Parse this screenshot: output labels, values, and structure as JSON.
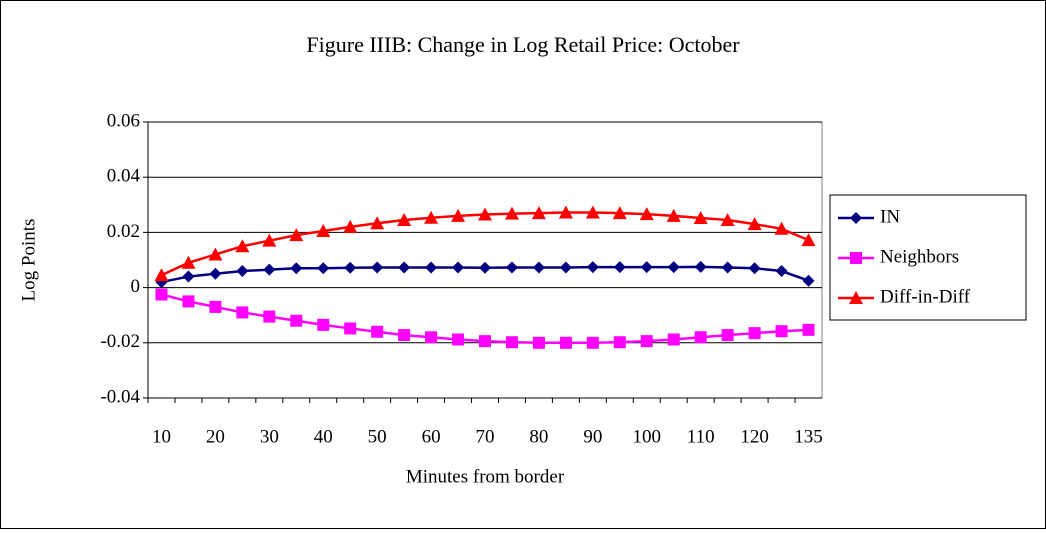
{
  "chart_data": {
    "type": "line",
    "title": "Figure IIIB:  Change in Log Retail Price:  October",
    "y_label": "Log Points",
    "x_label": "Minutes from border",
    "categories": [
      "10",
      null,
      "20",
      null,
      "30",
      null,
      "40",
      null,
      "50",
      null,
      "60",
      null,
      "70",
      null,
      "80",
      null,
      "90",
      null,
      "100",
      null,
      "110",
      null,
      "120",
      null,
      "135"
    ],
    "series": [
      {
        "name": "IN",
        "color": "#000080",
        "marker": "diamond",
        "values": [
          0.002,
          0.004,
          0.005,
          0.006,
          0.0065,
          0.007,
          0.007,
          0.0072,
          0.0073,
          0.0073,
          0.0073,
          0.0073,
          0.0072,
          0.0073,
          0.0073,
          0.0073,
          0.0074,
          0.0074,
          0.0074,
          0.0074,
          0.0075,
          0.0073,
          0.007,
          0.006,
          0.0025
        ]
      },
      {
        "name": "Neighbors",
        "color": "#ff00ff",
        "marker": "square",
        "values": [
          -0.0025,
          -0.005,
          -0.007,
          -0.009,
          -0.0105,
          -0.012,
          -0.0135,
          -0.0148,
          -0.016,
          -0.0172,
          -0.018,
          -0.0188,
          -0.0194,
          -0.0198,
          -0.02,
          -0.02,
          -0.02,
          -0.0198,
          -0.0194,
          -0.0188,
          -0.018,
          -0.0172,
          -0.0165,
          -0.0158,
          -0.0153
        ]
      },
      {
        "name": "Diff-in-Diff",
        "color": "#ff0000",
        "marker": "triangle",
        "values": [
          0.0045,
          0.009,
          0.012,
          0.015,
          0.017,
          0.019,
          0.0205,
          0.022,
          0.0233,
          0.0245,
          0.0253,
          0.026,
          0.0265,
          0.0268,
          0.027,
          0.0272,
          0.0272,
          0.027,
          0.0266,
          0.026,
          0.0252,
          0.0245,
          0.023,
          0.0213,
          0.0172
        ]
      }
    ],
    "ylim": [
      -0.04,
      0.06
    ],
    "yticks": [
      -0.04,
      -0.02,
      0,
      0.02,
      0.04,
      0.06
    ],
    "grid": true,
    "legend": "right"
  }
}
